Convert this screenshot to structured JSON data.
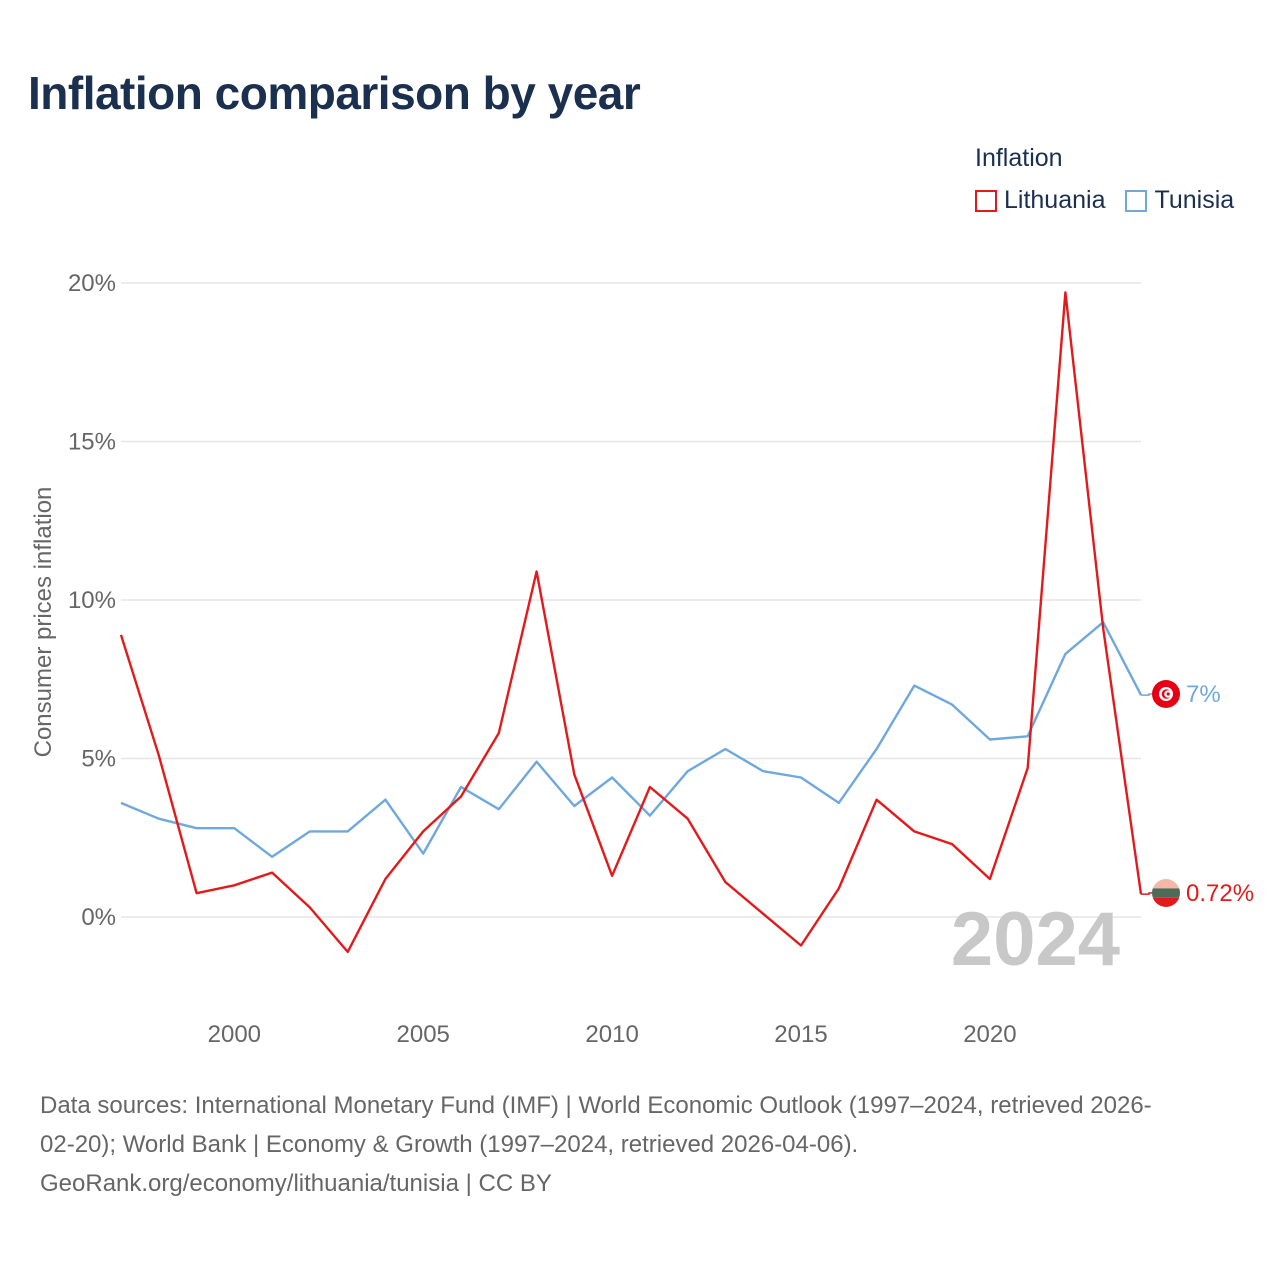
{
  "title": "Inflation comparison by year",
  "legend": {
    "title": "Inflation",
    "items": [
      {
        "name": "Lithuania",
        "color": "#e31a1c"
      },
      {
        "name": "Tunisia",
        "color": "#6fa8dc"
      }
    ]
  },
  "chart_data": {
    "type": "line",
    "title": "Inflation comparison by year",
    "xlabel": "",
    "ylabel": "Consumer prices inflation",
    "xlim": [
      1997,
      2024
    ],
    "ylim": [
      -2.5,
      21
    ],
    "yticks": [
      0,
      5,
      10,
      15,
      20
    ],
    "ytick_labels": [
      "0%",
      "5%",
      "10%",
      "15%",
      "20%"
    ],
    "xticks": [
      2000,
      2005,
      2010,
      2015,
      2020
    ],
    "xtick_labels": [
      "2000",
      "2005",
      "2010",
      "2015",
      "2020"
    ],
    "grid": true,
    "legend_position": "top-right",
    "year_watermark": "2024",
    "x": [
      1997,
      1998,
      1999,
      2000,
      2001,
      2002,
      2003,
      2004,
      2005,
      2006,
      2007,
      2008,
      2009,
      2010,
      2011,
      2012,
      2013,
      2014,
      2015,
      2016,
      2017,
      2018,
      2019,
      2020,
      2021,
      2022,
      2023,
      2024
    ],
    "series": [
      {
        "name": "Lithuania",
        "color": "#e31a1c",
        "end_label": "0.72%",
        "values": [
          8.9,
          5.1,
          0.75,
          1.0,
          1.4,
          0.3,
          -1.1,
          1.2,
          2.7,
          3.8,
          5.8,
          10.9,
          4.5,
          1.3,
          4.1,
          3.1,
          1.1,
          0.1,
          -0.9,
          0.9,
          3.7,
          2.7,
          2.3,
          1.2,
          4.7,
          19.7,
          9.1,
          0.72
        ]
      },
      {
        "name": "Tunisia",
        "color": "#6fa8dc",
        "end_label": "7%",
        "values": [
          3.6,
          3.1,
          2.8,
          2.8,
          1.9,
          2.7,
          2.7,
          3.7,
          2.0,
          4.1,
          3.4,
          4.9,
          3.5,
          4.4,
          3.2,
          4.6,
          5.3,
          4.6,
          4.4,
          3.6,
          5.3,
          7.3,
          6.7,
          5.6,
          5.7,
          8.3,
          9.3,
          7.0
        ]
      }
    ]
  },
  "source": {
    "line1": "Data sources: International Monetary Fund (IMF) | World Economic Outlook (1997–2024, retrieved 2026-",
    "line2": "02-20); World Bank | Economy & Growth (1997–2024, retrieved 2026-04-06).",
    "line3": "GeoRank.org/economy/lithuania/tunisia | CC BY"
  }
}
